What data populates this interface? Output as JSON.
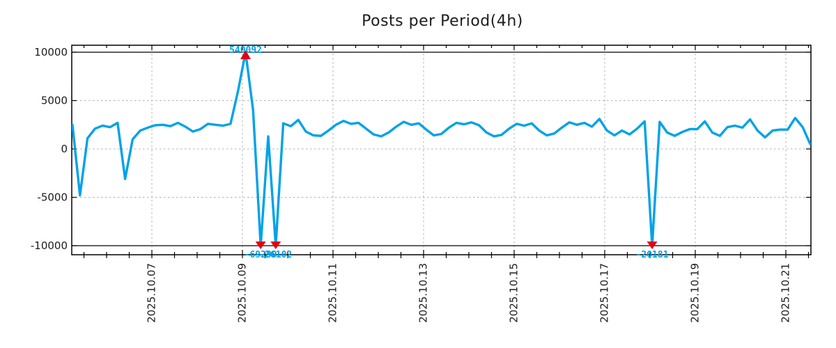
{
  "header": {
    "title": "Posts per Period(4h)"
  },
  "colors": {
    "line": "#00a2e8",
    "marker": "#e60012",
    "annotation_text": "#00a2e8",
    "grid": "#b0b0b0",
    "axis": "#000000",
    "text": "#1c1c1c"
  },
  "chart_data": {
    "type": "line",
    "title": "Posts per Period(4h)",
    "period_hours": 4,
    "x_start_approx": "2025.10.05",
    "x_tick_labels": [
      "2025.10.07",
      "2025.10.09",
      "2025.10.11",
      "2025.10.13",
      "2025.10.15",
      "2025.10.17",
      "2025.10.19",
      "2025.10.21"
    ],
    "y_tick_labels": [
      "10000",
      "5000",
      "0",
      "-5000",
      "-10000"
    ],
    "y_ticks": [
      10000,
      5000,
      0,
      -5000,
      -10000
    ],
    "ylim_clip": [
      -10000,
      10000
    ],
    "grid": {
      "horizontal_dashed": [
        5000,
        0,
        -5000
      ],
      "horizontal_solid": [
        10000,
        -10000
      ],
      "vertical_dashed_at_ticks": true
    },
    "legend": "none",
    "series": [
      {
        "name": "posts-per-period",
        "color": "#00a2e8",
        "values": [
          2500,
          -4800,
          1100,
          2100,
          2400,
          2250,
          2700,
          -3100,
          1000,
          1900,
          2200,
          2450,
          2500,
          2350,
          2700,
          2300,
          1800,
          2050,
          2600,
          2500,
          2400,
          2600,
          6000,
          10000,
          4000,
          -10000,
          1300,
          -10000,
          2650,
          2350,
          3000,
          1800,
          1400,
          1350,
          1900,
          2500,
          2900,
          2600,
          2700,
          2100,
          1500,
          1300,
          1700,
          2300,
          2800,
          2500,
          2650,
          2000,
          1400,
          1550,
          2200,
          2700,
          2550,
          2750,
          2450,
          1700,
          1300,
          1450,
          2100,
          2600,
          2400,
          2650,
          1900,
          1400,
          1600,
          2200,
          2750,
          2500,
          2700,
          2300,
          3100,
          1900,
          1400,
          1900,
          1500,
          2100,
          2850,
          -10000,
          2800,
          1700,
          1350,
          1750,
          2050,
          2050,
          2850,
          1700,
          1350,
          2250,
          2400,
          2200,
          3050,
          1900,
          1200,
          1900,
          2000,
          2000,
          3200,
          2250,
          500
        ]
      }
    ],
    "annotations": [
      {
        "index": 23,
        "label": "540092",
        "marker": "triangle-up"
      },
      {
        "index": 25,
        "label": "-69290",
        "marker": "triangle-down"
      },
      {
        "index": 27,
        "label": "-26102",
        "marker": "triangle-down"
      },
      {
        "index": 77,
        "label": "-20181",
        "marker": "triangle-down"
      }
    ]
  }
}
